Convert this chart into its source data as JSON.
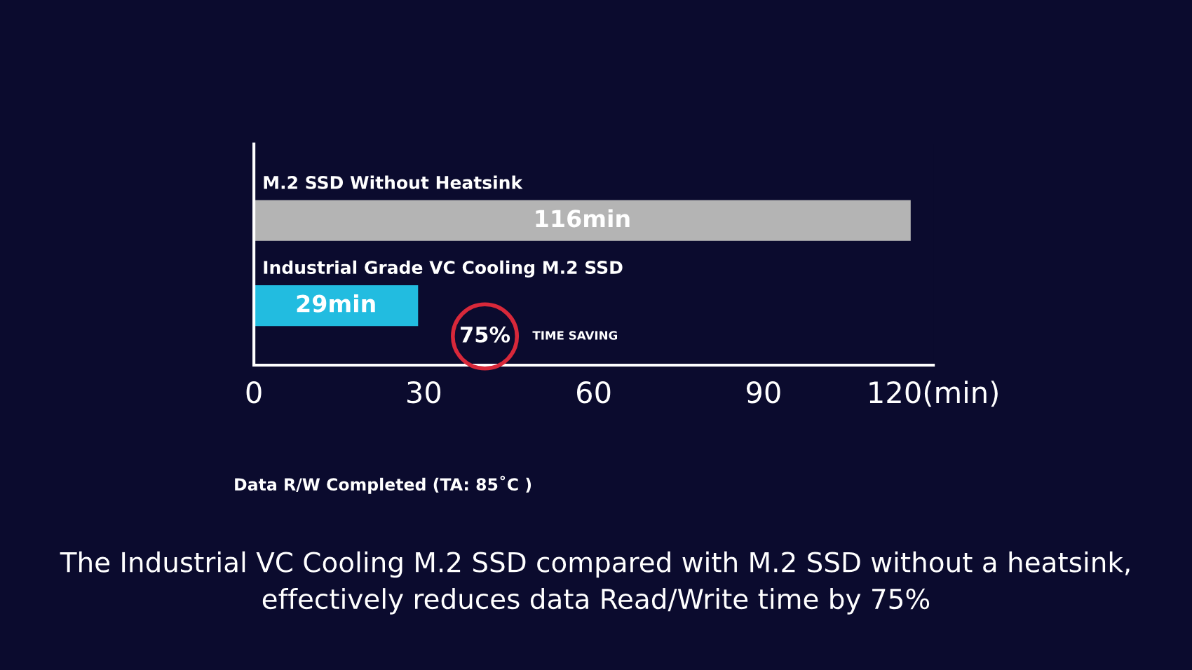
{
  "chart_data": {
    "type": "bar",
    "orientation": "horizontal",
    "categories": [
      "M.2 SSD Without Heatsink",
      "Industrial Grade VC Cooling M.2 SSD"
    ],
    "values": [
      116,
      29
    ],
    "colors": [
      "#b4b4b4",
      "#22bce0"
    ],
    "value_labels": [
      "116min",
      "29min"
    ],
    "xlim": [
      0,
      120
    ],
    "xticks": [
      0,
      30,
      60,
      90,
      {
        "value": 120,
        "label": "120(min)"
      }
    ],
    "xlabel": "Data R/W Completed (TA: 85˚C )",
    "grid": false,
    "annotations": [
      "75%",
      "TIME SAVING",
      "The Industrial VC Cooling M.2 SSD compared with M.2 SSD without a heatsink, effectively reduces data Read/Write time by 75%"
    ]
  }
}
